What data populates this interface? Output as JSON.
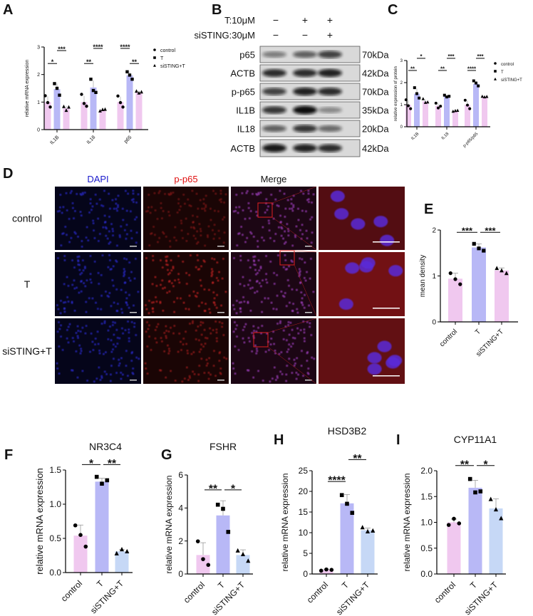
{
  "panel_letters": [
    "A",
    "B",
    "C",
    "D",
    "E",
    "F",
    "G",
    "H",
    "I"
  ],
  "western_blot": {
    "conditions": [
      {
        "label": "T:10μM",
        "signs": [
          "−",
          "+",
          "+"
        ]
      },
      {
        "label": "siSTING:30μM",
        "signs": [
          "−",
          "−",
          "+"
        ]
      }
    ],
    "rows": [
      {
        "protein": "p65",
        "size": "70kDa"
      },
      {
        "protein": "ACTB",
        "size": "42kDa"
      },
      {
        "protein": "p-p65",
        "size": "70kDa"
      },
      {
        "protein": "IL1B",
        "size": "35kDa"
      },
      {
        "protein": "IL18",
        "size": "20kDa"
      },
      {
        "protein": "ACTB",
        "size": "42kDa"
      }
    ]
  },
  "immunofluorescence": {
    "columns": [
      {
        "label": "DAPI",
        "color": "#1a1acc"
      },
      {
        "label": "p-p65",
        "color": "#e01010"
      },
      {
        "label": "Merge",
        "color": "#111111"
      }
    ],
    "rows": [
      "control",
      "T",
      "siSTING+T"
    ]
  },
  "colors": {
    "control": "#f0c8ef",
    "T": "#b8b8f6",
    "siSTING_T_pink": "#f0c8ef",
    "siSTING_T_blue": "#c6d8f6"
  },
  "chart_data": [
    {
      "panel": "A",
      "type": "bar",
      "ylabel": "relative mRNA expression",
      "ylim": [
        0,
        3
      ],
      "yticks": [
        "0",
        "1",
        "2",
        "3"
      ],
      "categories": [
        "IL1B",
        "IL18",
        "p65"
      ],
      "legend": "right",
      "series": [
        {
          "name": "control",
          "marker": "circle",
          "values": [
            1.0,
            1.0,
            1.0
          ],
          "points": [
            [
              1.23,
              0.98,
              0.82
            ],
            [
              1.28,
              0.95,
              0.85
            ],
            [
              1.22,
              0.98,
              0.82
            ]
          ]
        },
        {
          "name": "T",
          "marker": "square",
          "values": [
            1.47,
            1.53,
            1.97
          ],
          "points": [
            [
              1.67,
              1.5,
              1.25
            ],
            [
              1.83,
              1.42,
              1.35
            ],
            [
              2.1,
              1.98,
              1.83
            ]
          ]
        },
        {
          "name": "siSTING+T",
          "marker": "triangle",
          "values": [
            0.78,
            0.72,
            1.35
          ],
          "points": [
            [
              0.84,
              0.7,
              0.82
            ],
            [
              0.68,
              0.73,
              0.74
            ],
            [
              1.4,
              1.33,
              1.37
            ]
          ]
        }
      ],
      "comparisons": [
        {
          "category": "IL1B",
          "pair": [
            "control",
            "T"
          ],
          "label": "*"
        },
        {
          "category": "IL1B",
          "pair": [
            "T",
            "siSTING+T"
          ],
          "label": "***"
        },
        {
          "category": "IL18",
          "pair": [
            "control",
            "T"
          ],
          "label": "**"
        },
        {
          "category": "IL18",
          "pair": [
            "T",
            "siSTING+T"
          ],
          "label": "****"
        },
        {
          "category": "p65",
          "pair": [
            "control",
            "T"
          ],
          "label": "****"
        },
        {
          "category": "p65",
          "pair": [
            "T",
            "siSTING+T"
          ],
          "label": "**"
        }
      ]
    },
    {
      "panel": "C",
      "type": "bar",
      "ylabel": "relative expression of protein",
      "ylim": [
        0,
        3
      ],
      "yticks": [
        "0",
        "1",
        "2",
        "3"
      ],
      "categories": [
        "IL1B",
        "IL18",
        "p-p65/p65"
      ],
      "legend": "right",
      "series": [
        {
          "name": "control",
          "marker": "circle",
          "values": [
            1.0,
            0.95,
            1.0
          ],
          "points": [
            [
              1.22,
              0.95,
              0.82
            ],
            [
              1.07,
              0.85,
              0.93
            ],
            [
              1.2,
              0.98,
              0.82
            ]
          ]
        },
        {
          "name": "T",
          "marker": "square",
          "values": [
            1.5,
            1.38,
            1.95
          ],
          "points": [
            [
              1.77,
              1.5,
              1.3
            ],
            [
              1.43,
              1.35,
              1.38
            ],
            [
              2.08,
              1.98,
              1.85
            ]
          ]
        },
        {
          "name": "siSTING+T",
          "marker": "triangle",
          "values": [
            1.15,
            0.72,
            1.37
          ],
          "points": [
            [
              1.27,
              1.1,
              1.12
            ],
            [
              0.7,
              0.73,
              0.74
            ],
            [
              1.38,
              1.35,
              1.37
            ]
          ]
        }
      ],
      "comparisons": [
        {
          "category": "IL1B",
          "pair": [
            "control",
            "T"
          ],
          "label": "**"
        },
        {
          "category": "IL1B",
          "pair": [
            "T",
            "siSTING+T"
          ],
          "label": "*"
        },
        {
          "category": "IL18",
          "pair": [
            "control",
            "T"
          ],
          "label": "**"
        },
        {
          "category": "IL18",
          "pair": [
            "T",
            "siSTING+T"
          ],
          "label": "***"
        },
        {
          "category": "p-p65/p65",
          "pair": [
            "control",
            "T"
          ],
          "label": "****"
        },
        {
          "category": "p-p65/p65",
          "pair": [
            "T",
            "siSTING+T"
          ],
          "label": "***"
        }
      ]
    },
    {
      "panel": "E",
      "type": "bar",
      "title": "",
      "ylabel": "mean density",
      "ylim": [
        0,
        2
      ],
      "yticks": [
        "0",
        "1",
        "2"
      ],
      "categories": [
        "control",
        "T",
        "siSTING+T"
      ],
      "values": [
        0.94,
        1.62,
        1.12
      ],
      "points": [
        [
          1.06,
          0.93,
          0.82
        ],
        [
          1.7,
          1.6,
          1.55
        ],
        [
          1.17,
          1.12,
          1.06
        ]
      ],
      "comparisons": [
        {
          "pair": [
            "control",
            "T"
          ],
          "label": "***"
        },
        {
          "pair": [
            "T",
            "siSTING+T"
          ],
          "label": "***"
        }
      ]
    },
    {
      "panel": "F",
      "type": "bar",
      "title": "NR3C4",
      "ylabel": "relative mRNA expression",
      "ylim": [
        0,
        1.5
      ],
      "yticks": [
        "0.0",
        "0.5",
        "1.0",
        "1.5"
      ],
      "categories": [
        "control",
        "T",
        "siSTING+T"
      ],
      "values": [
        0.54,
        1.33,
        0.31
      ],
      "points": [
        [
          0.69,
          0.55,
          0.38
        ],
        [
          1.4,
          1.3,
          1.35
        ],
        [
          0.28,
          0.34,
          0.31
        ]
      ],
      "comparisons": [
        {
          "pair": [
            "control",
            "T"
          ],
          "label": "*"
        },
        {
          "pair": [
            "T",
            "siSTING+T"
          ],
          "label": "**"
        }
      ]
    },
    {
      "panel": "G",
      "type": "bar",
      "title": "FSHR",
      "ylabel": "relative mRNA expression",
      "ylim": [
        0,
        6
      ],
      "yticks": [
        "0",
        "2",
        "4",
        "6"
      ],
      "categories": [
        "control",
        "T",
        "siSTING+T"
      ],
      "values": [
        1.15,
        3.55,
        1.15
      ],
      "points": [
        [
          1.98,
          0.9,
          0.55
        ],
        [
          4.2,
          3.95,
          2.55
        ],
        [
          1.42,
          1.2,
          0.8
        ]
      ],
      "comparisons": [
        {
          "pair": [
            "control",
            "T"
          ],
          "label": "**"
        },
        {
          "pair": [
            "T",
            "siSTING+T"
          ],
          "label": "*"
        }
      ]
    },
    {
      "panel": "H",
      "type": "bar",
      "title": "HSD3B2",
      "ylabel": "relative mRNA expression",
      "ylim": [
        0,
        25
      ],
      "yticks": [
        "0",
        "5",
        "10",
        "15",
        "20",
        "25"
      ],
      "categories": [
        "control",
        "T",
        "siSTING+T"
      ],
      "values": [
        1.0,
        17.1,
        10.6
      ],
      "points": [
        [
          0.8,
          1.1,
          1.0
        ],
        [
          19.1,
          17.0,
          14.8
        ],
        [
          11.3,
          10.3,
          10.5
        ]
      ],
      "comparisons": [
        {
          "pair": [
            "control",
            "T"
          ],
          "label": "****"
        },
        {
          "pair": [
            "T",
            "siSTING+T"
          ],
          "label": "**"
        }
      ]
    },
    {
      "panel": "I",
      "type": "bar",
      "title": "CYP11A1",
      "ylabel": "relative mRNA expression",
      "ylim": [
        0,
        2
      ],
      "yticks": [
        "0.0",
        "0.5",
        "1.0",
        "1.5",
        "2.0"
      ],
      "categories": [
        "control",
        "T",
        "siSTING+T"
      ],
      "values": [
        1.0,
        1.67,
        1.27
      ],
      "points": [
        [
          0.95,
          1.07,
          0.98
        ],
        [
          1.84,
          1.58,
          1.6
        ],
        [
          1.45,
          1.25,
          1.08
        ]
      ],
      "comparisons": [
        {
          "pair": [
            "control",
            "T"
          ],
          "label": "**"
        },
        {
          "pair": [
            "T",
            "siSTING+T"
          ],
          "label": "*"
        }
      ]
    }
  ]
}
